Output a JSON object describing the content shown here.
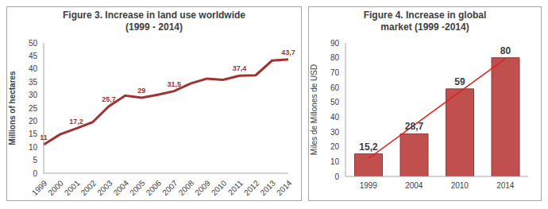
{
  "chart_data": [
    {
      "type": "line",
      "title": "Figure 3. Increase in land use worldwide\n(1999 - 2014)",
      "y_label": "Millions of hectares",
      "categories": [
        "1999",
        "2000",
        "2001",
        "2002",
        "2003",
        "2004",
        "2005",
        "2006",
        "2007",
        "2008",
        "2009",
        "2010",
        "2011",
        "2012",
        "2013",
        "2014"
      ],
      "values": [
        11,
        14.9,
        17.2,
        19.6,
        25.7,
        29.8,
        29,
        30.1,
        31.5,
        34.4,
        36.3,
        35.8,
        37.4,
        37.6,
        43.2,
        43.7
      ],
      "value_labels": [
        "11",
        null,
        "17,2",
        null,
        "25,7",
        null,
        "29",
        null,
        "31,5",
        null,
        null,
        null,
        "37,4",
        null,
        null,
        "43,7"
      ],
      "color": "#a0322f",
      "ylim": [
        0,
        50
      ],
      "yticks": [
        0,
        5,
        10,
        15,
        20,
        25,
        30,
        35,
        40,
        45,
        50
      ],
      "grid": false,
      "data_labels": true
    },
    {
      "type": "bar",
      "title": "Figure 4. Increase in global\nmarket (1999 -2014)",
      "y_label": "Miles de Millones de USD",
      "categories": [
        "1999",
        "2004",
        "2010",
        "2014"
      ],
      "values": [
        15.2,
        28.7,
        59,
        80
      ],
      "value_labels": [
        "15,2",
        "28,7",
        "59",
        "80"
      ],
      "trend": [
        12,
        34.5,
        57,
        79.4
      ],
      "color": "#c0504d",
      "ylim": [
        0,
        90
      ],
      "yticks": [
        0,
        10,
        20,
        30,
        40,
        50,
        60,
        70,
        80,
        90
      ],
      "grid": false,
      "data_labels": true
    }
  ]
}
